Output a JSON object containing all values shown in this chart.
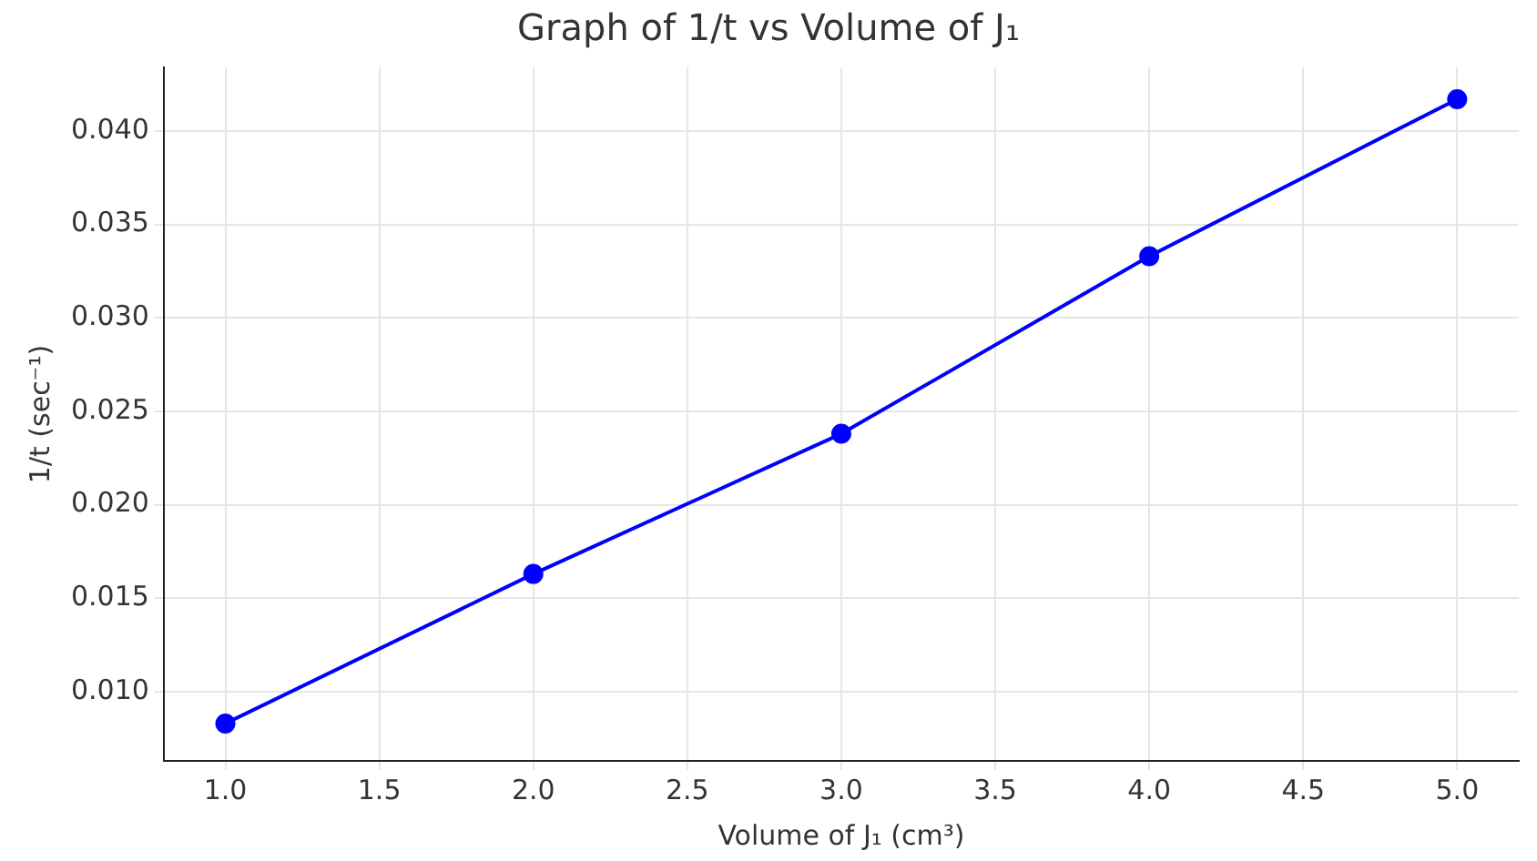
{
  "chart_data": {
    "type": "line",
    "title": "Graph of 1/t vs Volume of J₁",
    "xlabel": "Volume of J₁ (cm³)",
    "ylabel": "1/t (sec⁻¹)",
    "x": [
      1,
      2,
      3,
      4,
      5
    ],
    "series": [
      {
        "color": "#0000ff",
        "values": [
          0.0083,
          0.0163,
          0.0238,
          0.0333,
          0.0417
        ]
      }
    ],
    "xlim": [
      0.8,
      5.2
    ],
    "ylim": [
      0.0063,
      0.0434
    ],
    "xticks": [
      {
        "value": 1,
        "label": "1.0"
      },
      1.5,
      {
        "value": 2,
        "label": "2.0"
      },
      2.5,
      {
        "value": 3,
        "label": "3.0"
      },
      3.5,
      {
        "value": 4,
        "label": "4.0"
      },
      4.5,
      {
        "value": 5,
        "label": "5.0"
      }
    ],
    "yticks": [
      {
        "value": 0.01,
        "label": "0.010"
      },
      0.015,
      {
        "value": 0.02,
        "label": "0.020"
      },
      0.025,
      {
        "value": 0.03,
        "label": "0.030"
      },
      0.035,
      {
        "value": 0.04,
        "label": "0.040"
      }
    ],
    "grid": true,
    "marker": "circle",
    "line_style": "solid"
  }
}
